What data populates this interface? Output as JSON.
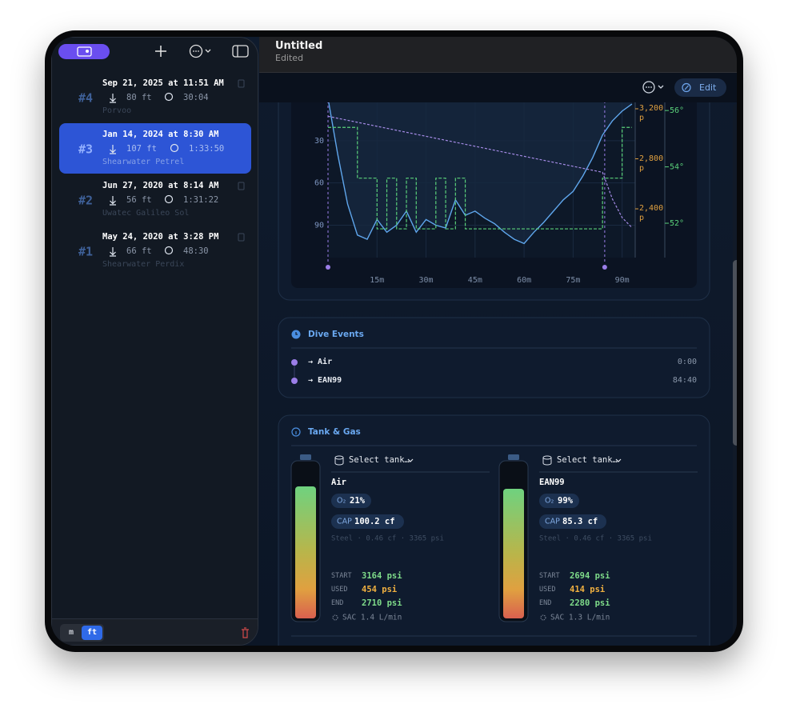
{
  "sidebar": {
    "dives": [
      {
        "number": "#4",
        "date": "Sep 21, 2025 at 11:51 AM",
        "depth": "80 ft",
        "duration": "30:04",
        "location": "Porvoo",
        "selected": false
      },
      {
        "number": "#3",
        "date": "Jan 14, 2024 at 8:30 AM",
        "depth": "107 ft",
        "duration": "1:33:50",
        "location": "Shearwater Petrel",
        "selected": true
      },
      {
        "number": "#2",
        "date": "Jun 27, 2020 at 8:14 AM",
        "depth": "56 ft",
        "duration": "1:31:22",
        "location": "Uwatec Galileo Sol",
        "selected": false
      },
      {
        "number": "#1",
        "date": "May 24, 2020 at 3:28 PM",
        "depth": "66 ft",
        "duration": "48:30",
        "location": "Shearwater Perdix",
        "selected": false
      }
    ],
    "units": [
      "m",
      "ft"
    ]
  },
  "header": {
    "title": "Untitled",
    "subtitle": "Edited",
    "edit": "Edit"
  },
  "chart_data": {
    "type": "line",
    "x": [
      0,
      3,
      6,
      9,
      12,
      15,
      18,
      21,
      24,
      27,
      30,
      33,
      36,
      39,
      42,
      45,
      48,
      51,
      54,
      57,
      60,
      63,
      66,
      69,
      72,
      75,
      78,
      81,
      84,
      87,
      90,
      93
    ],
    "xlim": [
      0,
      94
    ],
    "xticks": [
      {
        "value": 15,
        "label": "15m"
      },
      {
        "value": 30,
        "label": "30m"
      },
      {
        "value": 45,
        "label": "45m"
      },
      {
        "value": 60,
        "label": "60m"
      },
      {
        "value": 75,
        "label": "75m"
      },
      {
        "value": 90,
        "label": "90m"
      }
    ],
    "ylim": [
      0,
      113
    ],
    "y_inverted": true,
    "yticks": [
      30,
      60,
      90
    ],
    "y2lim": [
      2010,
      3283
    ],
    "y2ticks": [
      {
        "value": 3200,
        "label": "3,200 p"
      },
      {
        "value": 2800,
        "label": "2,800 p"
      },
      {
        "value": 2400,
        "label": "2,400 p"
      }
    ],
    "y3lim": [
      50.78,
      56.43
    ],
    "y3ticks": [
      {
        "value": 56,
        "label": "56°"
      },
      {
        "value": 54,
        "label": "54°"
      },
      {
        "value": 52,
        "label": "52°"
      }
    ],
    "event_x": [
      0,
      84.67
    ],
    "grid": true,
    "series": [
      {
        "color": "#5fa6ec",
        "values": [
          0,
          40,
          75,
          97,
          100,
          86,
          95,
          90,
          80,
          95,
          86,
          90,
          92,
          72,
          83,
          80,
          85,
          89,
          95,
          100,
          103,
          95,
          88,
          80,
          72,
          66,
          55,
          42,
          26,
          16,
          9,
          4
        ]
      },
      {
        "color": "#a58be6",
        "axis": "y2",
        "values": [
          3140,
          3124,
          3108,
          3092,
          3076,
          3060,
          3044,
          3028,
          3012,
          2996,
          2980,
          2964,
          2948,
          2932,
          2916,
          2900,
          2884,
          2868,
          2852,
          2836,
          2820,
          2804,
          2788,
          2772,
          2756,
          2740,
          2724,
          2708,
          2692,
          2480,
          2330,
          2250
        ]
      },
      {
        "color": "#5ad17a",
        "axis": "y3",
        "step": true,
        "values": [
          55.4,
          55.4,
          55.4,
          53.6,
          53.6,
          51.8,
          53.6,
          51.8,
          53.6,
          51.8,
          51.8,
          53.6,
          51.8,
          53.6,
          51.8,
          51.8,
          51.8,
          51.8,
          51.8,
          51.8,
          51.8,
          51.8,
          51.8,
          51.8,
          51.8,
          51.8,
          51.8,
          51.8,
          53.6,
          53.6,
          55.4,
          55.4
        ]
      }
    ]
  },
  "events": {
    "title": "Dive Events",
    "rows": [
      {
        "label": "→ Air",
        "time": "0:00"
      },
      {
        "label": "→ EAN99",
        "time": "84:40"
      }
    ]
  },
  "tanks": {
    "title": "Tank & Gas",
    "items": [
      {
        "select": "Select tank…",
        "gas": "Air",
        "o2_label": "O₂",
        "o2": "21%",
        "cap_label": "CAP",
        "cap": "100.2 cf",
        "spec": "Steel · 0.46 cf · 3365 psi",
        "start_label": "START",
        "start": "3164 psi",
        "used_label": "USED",
        "used": "454 psi",
        "end_label": "END",
        "end": "2710 psi",
        "sac": "SAC 1.4 L/min"
      },
      {
        "select": "Select tank…",
        "gas": "EAN99",
        "o2_label": "O₂",
        "o2": "99%",
        "cap_label": "CAP",
        "cap": "85.3 cf",
        "spec": "Steel · 0.46 cf · 3365 psi",
        "start_label": "START",
        "start": "2694 psi",
        "used_label": "USED",
        "used": "414 psi",
        "end_label": "END",
        "end": "2280 psi",
        "sac": "SAC 1.3 L/min"
      }
    ]
  }
}
